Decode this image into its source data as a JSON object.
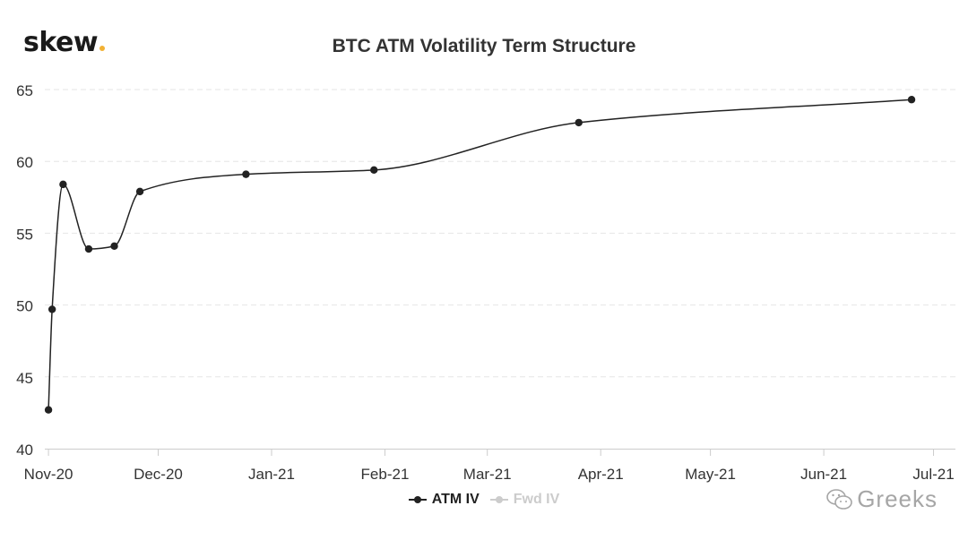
{
  "brand": {
    "name": "skew",
    "dot_color": "#f2b134"
  },
  "watermark": {
    "text": "Greeks",
    "icon": "wechat-icon"
  },
  "colors": {
    "atm": "#222222",
    "fwd": "#cccccc",
    "grid": "#e6e6e6",
    "axis": "#cccccc",
    "text": "#333333"
  },
  "chart_data": {
    "type": "line",
    "title": "BTC ATM Volatility Term Structure",
    "xlabel": "",
    "ylabel": "",
    "x_type": "date",
    "xlim": [
      "2020-10-31",
      "2021-07-07"
    ],
    "ylim": [
      40,
      65
    ],
    "yticks": [
      40,
      45,
      50,
      55,
      60,
      65
    ],
    "xticks": [
      {
        "date": "2020-11-01",
        "label": "Nov-20"
      },
      {
        "date": "2020-12-01",
        "label": "Dec-20"
      },
      {
        "date": "2021-01-01",
        "label": "Jan-21"
      },
      {
        "date": "2021-02-01",
        "label": "Feb-21"
      },
      {
        "date": "2021-03-01",
        "label": "Mar-21"
      },
      {
        "date": "2021-04-01",
        "label": "Apr-21"
      },
      {
        "date": "2021-05-01",
        "label": "May-21"
      },
      {
        "date": "2021-06-01",
        "label": "Jun-21"
      },
      {
        "date": "2021-07-01",
        "label": "Jul-21"
      }
    ],
    "grid": "horizontal dashed",
    "legend_position": "bottom",
    "series": [
      {
        "name": "ATM IV",
        "visible": true,
        "points": [
          {
            "x": "2020-11-01",
            "y": 42.7
          },
          {
            "x": "2020-11-02",
            "y": 49.7
          },
          {
            "x": "2020-11-05",
            "y": 58.4
          },
          {
            "x": "2020-11-12",
            "y": 53.9
          },
          {
            "x": "2020-11-19",
            "y": 54.1
          },
          {
            "x": "2020-11-26",
            "y": 57.9
          },
          {
            "x": "2020-12-25",
            "y": 59.1
          },
          {
            "x": "2021-01-29",
            "y": 59.4
          },
          {
            "x": "2021-03-26",
            "y": 62.7
          },
          {
            "x": "2021-06-25",
            "y": 64.3
          }
        ]
      },
      {
        "name": "Fwd IV",
        "visible": false,
        "points": []
      }
    ]
  }
}
